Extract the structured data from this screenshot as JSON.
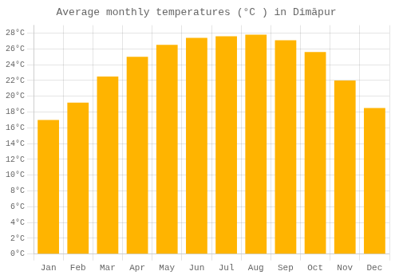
{
  "chart_data": {
    "type": "bar",
    "title": "Average monthly temperatures (°C ) in Dimāpur",
    "categories": [
      "Jan",
      "Feb",
      "Mar",
      "Apr",
      "May",
      "Jun",
      "Jul",
      "Aug",
      "Sep",
      "Oct",
      "Nov",
      "Dec"
    ],
    "values": [
      17.0,
      19.2,
      22.5,
      25.0,
      26.5,
      27.4,
      27.6,
      27.8,
      27.1,
      25.6,
      22.0,
      18.5
    ],
    "color": "#FFB400",
    "ylim": [
      0,
      29
    ],
    "yticks": [
      {
        "value": 0,
        "label": "0°C"
      },
      {
        "value": 2,
        "label": "2°C"
      },
      {
        "value": 4,
        "label": "4°C"
      },
      {
        "value": 6,
        "label": "6°C"
      },
      {
        "value": 8,
        "label": "8°C"
      },
      {
        "value": 10,
        "label": "10°C"
      },
      {
        "value": 12,
        "label": "12°C"
      },
      {
        "value": 14,
        "label": "14°C"
      },
      {
        "value": 16,
        "label": "16°C"
      },
      {
        "value": 18,
        "label": "18°C"
      },
      {
        "value": 20,
        "label": "20°C"
      },
      {
        "value": 22,
        "label": "22°C"
      },
      {
        "value": 24,
        "label": "24°C"
      },
      {
        "value": 26,
        "label": "26°C"
      },
      {
        "value": 28,
        "label": "28°C"
      }
    ],
    "grid": true
  }
}
